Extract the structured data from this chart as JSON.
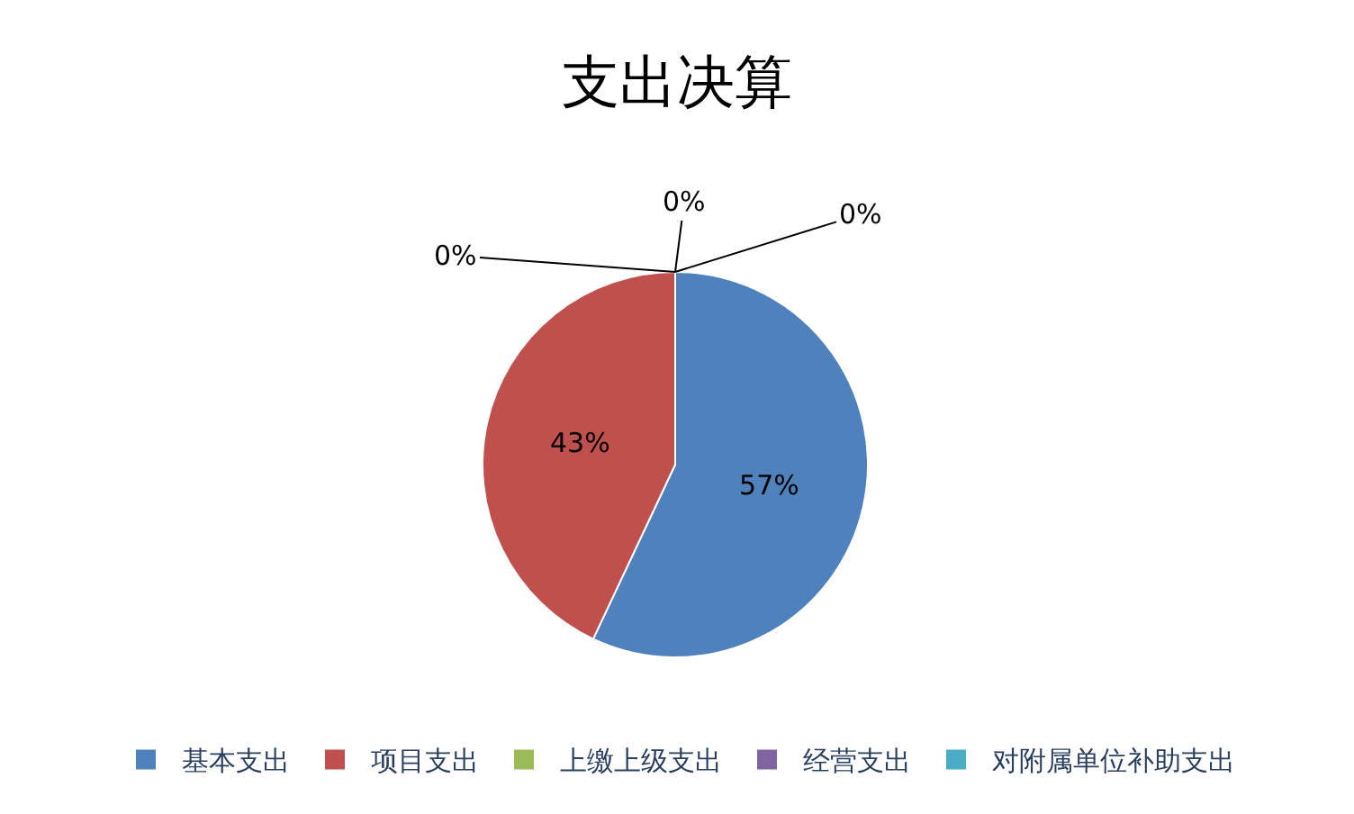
{
  "chart_data": {
    "type": "pie",
    "title": "支出决算",
    "categories": [
      "基本支出",
      "项目支出",
      "上缴上级支出",
      "经营支出",
      "对附属单位补助支出"
    ],
    "values": [
      57,
      43,
      0,
      0,
      0
    ],
    "value_labels": [
      "57%",
      "43%",
      "0%",
      "0%",
      "0%"
    ],
    "colors": [
      "#4f81bd",
      "#c0504d",
      "#9bbb59",
      "#8064a2",
      "#4bacc6"
    ],
    "legend": "bottom"
  }
}
